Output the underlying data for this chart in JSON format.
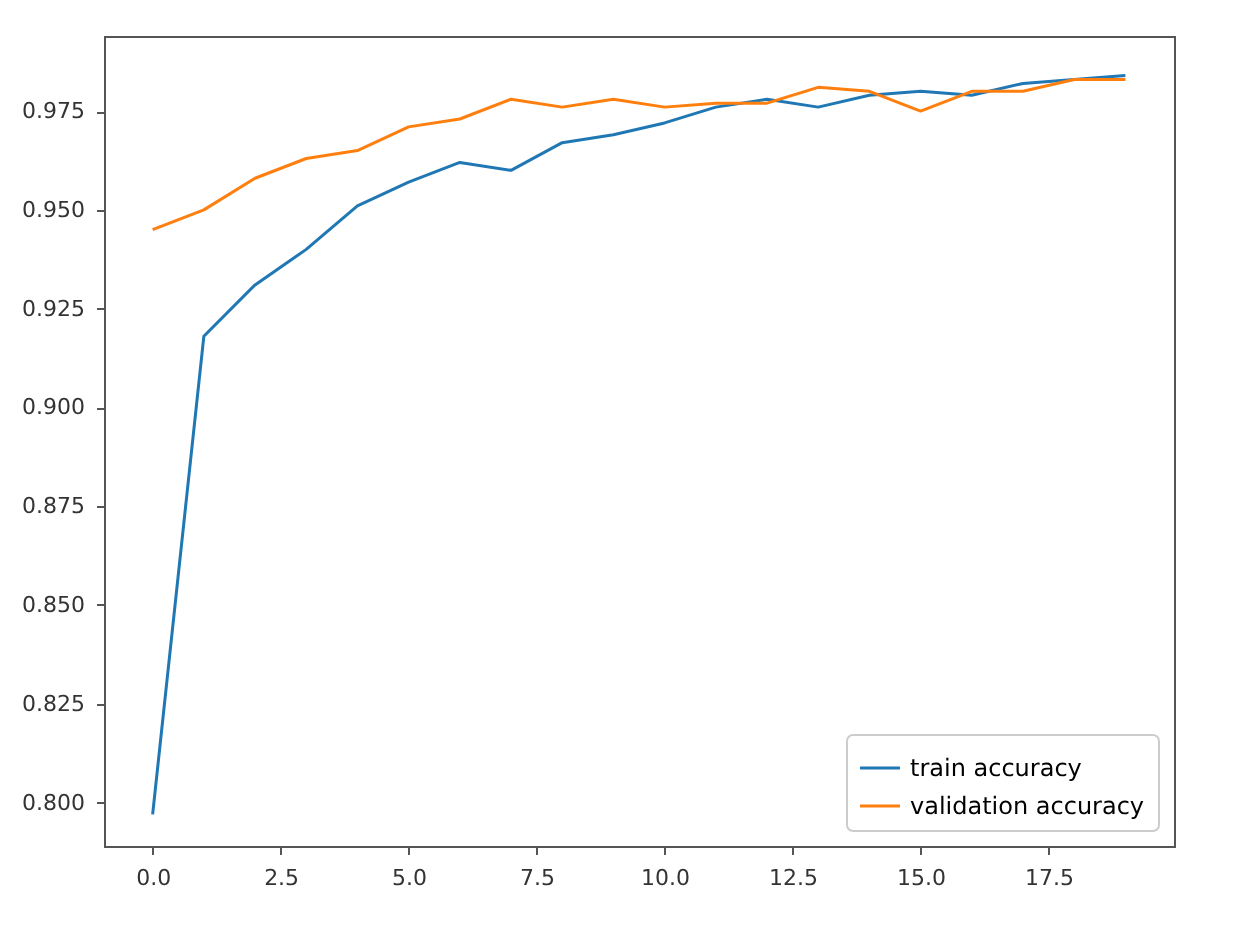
{
  "chart_data": {
    "type": "line",
    "x": [
      0,
      1,
      2,
      3,
      4,
      5,
      6,
      7,
      8,
      9,
      10,
      11,
      12,
      13,
      14,
      15,
      16,
      17,
      18,
      19
    ],
    "series": [
      {
        "name": "train accuracy",
        "color": "#1f77b4",
        "values": [
          0.797,
          0.918,
          0.931,
          0.94,
          0.951,
          0.957,
          0.962,
          0.96,
          0.967,
          0.969,
          0.972,
          0.976,
          0.978,
          0.976,
          0.979,
          0.98,
          0.979,
          0.982,
          0.983,
          0.984
        ]
      },
      {
        "name": "validation accuracy",
        "color": "#ff7f0e",
        "values": [
          0.945,
          0.95,
          0.958,
          0.963,
          0.965,
          0.971,
          0.973,
          0.978,
          0.976,
          0.978,
          0.976,
          0.977,
          0.977,
          0.981,
          0.98,
          0.975,
          0.98,
          0.98,
          0.983,
          0.983
        ]
      }
    ],
    "xlim": [
      -0.95,
      19.95
    ],
    "xticks": [
      {
        "value": 0,
        "label": "0.0"
      },
      2.5,
      {
        "value": 5,
        "label": "5.0"
      },
      7.5,
      {
        "value": 10,
        "label": "10.0"
      },
      12.5,
      {
        "value": 15,
        "label": "15.0"
      },
      17.5
    ],
    "ylim": [
      0.789,
      0.994
    ],
    "yticks": [
      {
        "value": 0.8,
        "label": "0.800"
      },
      0.825,
      {
        "value": 0.85,
        "label": "0.850"
      },
      0.875,
      {
        "value": 0.9,
        "label": "0.900"
      },
      0.925,
      {
        "value": 0.95,
        "label": "0.950"
      },
      0.975
    ],
    "legend": "bottom right",
    "grid": false,
    "marker": "none",
    "line_style": "solid"
  }
}
